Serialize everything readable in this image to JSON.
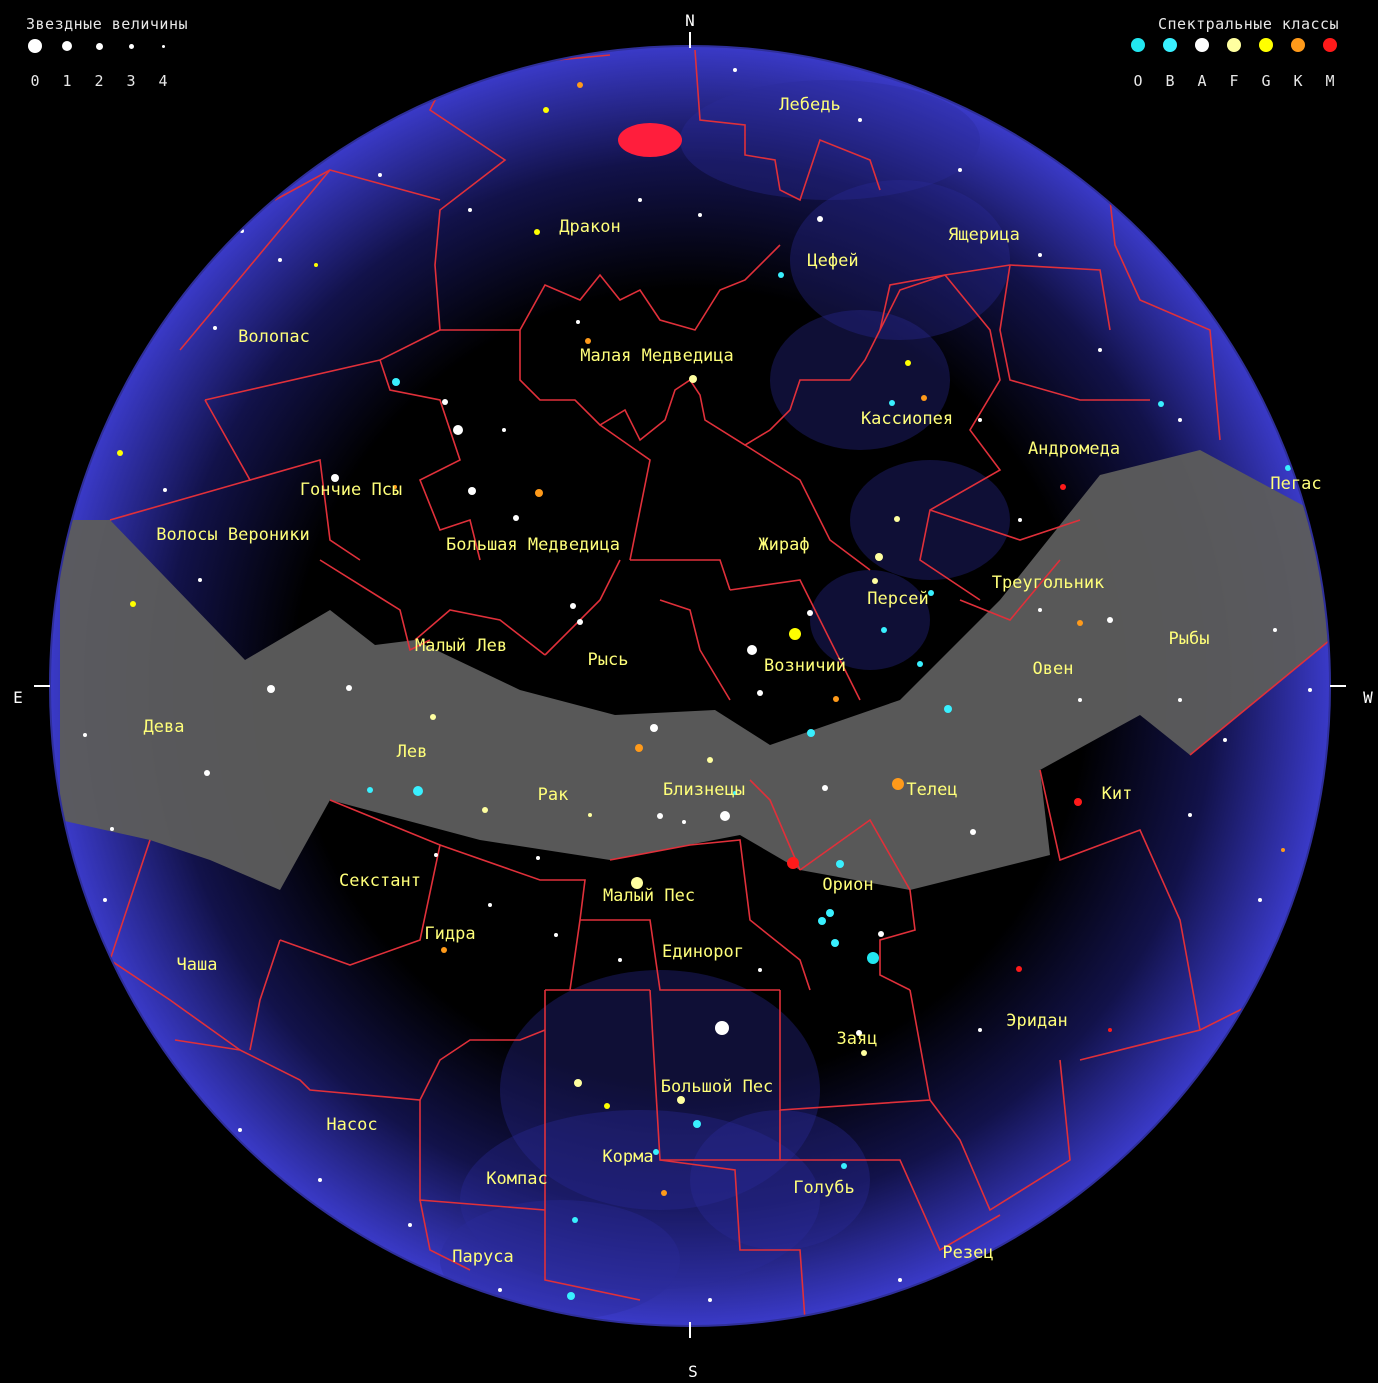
{
  "legend": {
    "magnitudes_title": "Звездные величины",
    "magnitudes": [
      "0",
      "1",
      "2",
      "3",
      "4"
    ],
    "spectral_title": "Спектральные классы",
    "spectral": [
      {
        "label": "O",
        "color": "#22e6f0"
      },
      {
        "label": "B",
        "color": "#39f0ff"
      },
      {
        "label": "A",
        "color": "#ffffff"
      },
      {
        "label": "F",
        "color": "#ffffa0"
      },
      {
        "label": "G",
        "color": "#ffff00"
      },
      {
        "label": "K",
        "color": "#ff9a1a"
      },
      {
        "label": "M",
        "color": "#ff1a1a"
      }
    ]
  },
  "directions": {
    "north": "N",
    "south": "S",
    "east": "E",
    "west": "W"
  },
  "colors": {
    "sky_edge": "#3a3ac8",
    "sky_center": "#000000",
    "boundary": "#e0303a",
    "zodiac_band": "#5c5c5c",
    "label": "#ffff7a",
    "moon_spot": "#ff1e3c"
  },
  "constellations": [
    "Лебедь",
    "Дракон",
    "Цефей",
    "Ящерица",
    "Волопас",
    "Малая Медведица",
    "Кассиопея",
    "Андромеда",
    "Гончие Псы",
    "Пегас",
    "Волосы Вероники",
    "Большая Медведица",
    "Жираф",
    "Треугольник",
    "Персей",
    "Рыбы",
    "Малый Лев",
    "Рысь",
    "Возничий",
    "Овен",
    "Дева",
    "Лев",
    "Рак",
    "Близнецы",
    "Телец",
    "Кит",
    "Секстант",
    "Малый Пес",
    "Орион",
    "Гидра",
    "Чаша",
    "Единорог",
    "Заяц",
    "Эридан",
    "Большой Пес",
    "Насос",
    "Корма",
    "Компас",
    "Голубь",
    "Паруса",
    "Резец"
  ]
}
